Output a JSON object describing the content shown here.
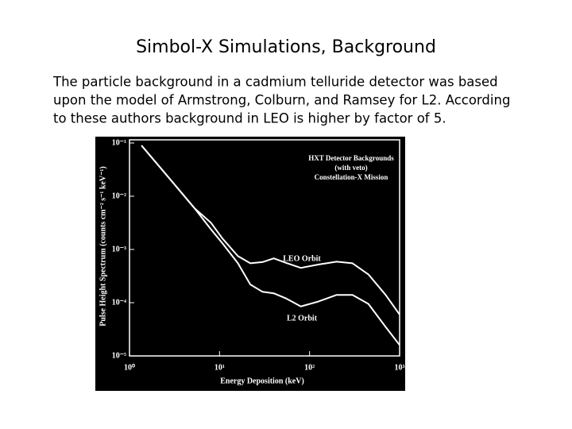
{
  "slide": {
    "title": "Simbol-X Simulations, Background",
    "body": [
      "The particle background in a cadmium telluride detector was based",
      "upon the model of Armstrong, Colburn, and Ramsey for L2. According",
      "to these authors background in LEO is higher by factor of 5."
    ]
  },
  "chart_data": {
    "type": "line",
    "annotations": [
      "HXT Detector Backgrounds",
      "(with veto)",
      "Constellation-X Mission"
    ],
    "x_label": "Energy Deposition (keV)",
    "y_label": "Pulse Height Spectrum (counts cm⁻² s⁻¹ keV⁻¹)",
    "xscale": "log",
    "yscale": "log",
    "x": [
      1.36,
      2,
      3,
      5.3,
      8,
      10.8,
      16,
      22,
      30,
      40,
      55,
      80,
      125,
      200,
      300,
      450,
      700,
      1000
    ],
    "series": [
      {
        "name": "LEO Orbit",
        "color": "#ffffff",
        "values": [
          0.09,
          0.0416,
          0.0185,
          0.0059,
          0.0032,
          0.0016,
          0.00075,
          0.00055,
          0.00058,
          0.00068,
          0.00056,
          0.00045,
          0.00052,
          0.00059,
          0.00055,
          0.00034,
          0.00014,
          6e-05
        ]
      },
      {
        "name": "L2 Orbit",
        "color": "#ffffff",
        "values": [
          0.09,
          0.0416,
          0.0185,
          0.0059,
          0.0024,
          0.0013,
          0.00055,
          0.00022,
          0.00016,
          0.00015,
          0.00012,
          8.5e-05,
          0.000105,
          0.00014,
          0.00014,
          9.5e-05,
          3.5e-05,
          1.6e-05
        ]
      }
    ],
    "xlim": [
      1,
      1000
    ],
    "xticks": [
      {
        "value": 1,
        "label": "10⁰"
      },
      {
        "value": 10,
        "label": "10¹"
      },
      {
        "value": 100,
        "label": "10²"
      },
      {
        "value": 1000,
        "label": "10³"
      }
    ],
    "ylim": [
      1e-05,
      0.1
    ],
    "yticks": [
      {
        "value": 1e-05,
        "label": "10⁻⁵"
      },
      {
        "value": 0.0001,
        "label": "10⁻⁴"
      },
      {
        "value": 0.001,
        "label": "10⁻³"
      },
      {
        "value": 0.01,
        "label": "10⁻²"
      },
      {
        "value": 0.1,
        "label": "10⁻¹"
      }
    ]
  }
}
